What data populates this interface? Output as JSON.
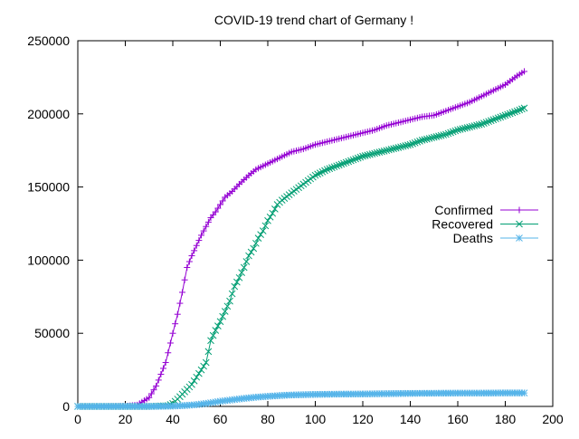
{
  "chart_data": {
    "type": "line",
    "title": "COVID-19 trend chart of Germany !",
    "xlabel": "",
    "ylabel": "",
    "xlim": [
      0,
      200
    ],
    "ylim": [
      0,
      250000
    ],
    "x_ticks": [
      0,
      20,
      40,
      60,
      80,
      100,
      120,
      140,
      160,
      180,
      200
    ],
    "y_ticks": [
      0,
      50000,
      100000,
      150000,
      200000,
      250000
    ],
    "grid": false,
    "legend_position": "right",
    "series": [
      {
        "name": "Confirmed",
        "color": "#9400d3",
        "marker": "plus",
        "points": [
          [
            0,
            0
          ],
          [
            10,
            0
          ],
          [
            20,
            150
          ],
          [
            25,
            1000
          ],
          [
            28,
            4000
          ],
          [
            30,
            6000
          ],
          [
            33,
            14000
          ],
          [
            35,
            22000
          ],
          [
            37,
            30000
          ],
          [
            40,
            50000
          ],
          [
            42,
            63000
          ],
          [
            44,
            78000
          ],
          [
            46,
            95000
          ],
          [
            48,
            103000
          ],
          [
            50,
            110000
          ],
          [
            52,
            117000
          ],
          [
            54,
            123000
          ],
          [
            56,
            129000
          ],
          [
            58,
            133000
          ],
          [
            60,
            138000
          ],
          [
            62,
            143000
          ],
          [
            65,
            147000
          ],
          [
            68,
            152000
          ],
          [
            70,
            155000
          ],
          [
            72,
            158000
          ],
          [
            75,
            162000
          ],
          [
            80,
            166000
          ],
          [
            85,
            170000
          ],
          [
            90,
            174000
          ],
          [
            95,
            176000
          ],
          [
            100,
            179000
          ],
          [
            105,
            181000
          ],
          [
            110,
            183000
          ],
          [
            115,
            185000
          ],
          [
            120,
            187000
          ],
          [
            125,
            189000
          ],
          [
            130,
            192000
          ],
          [
            135,
            194000
          ],
          [
            140,
            196000
          ],
          [
            145,
            198000
          ],
          [
            150,
            199000
          ],
          [
            155,
            202000
          ],
          [
            160,
            205000
          ],
          [
            165,
            208000
          ],
          [
            170,
            212000
          ],
          [
            175,
            216000
          ],
          [
            180,
            220000
          ],
          [
            185,
            226000
          ],
          [
            188,
            229000
          ]
        ]
      },
      {
        "name": "Recovered",
        "color": "#009e73",
        "marker": "cross",
        "points": [
          [
            0,
            0
          ],
          [
            20,
            0
          ],
          [
            30,
            0
          ],
          [
            38,
            500
          ],
          [
            40,
            2000
          ],
          [
            42,
            5000
          ],
          [
            45,
            10000
          ],
          [
            48,
            15000
          ],
          [
            50,
            20000
          ],
          [
            52,
            25000
          ],
          [
            54,
            30000
          ],
          [
            56,
            45000
          ],
          [
            58,
            52000
          ],
          [
            60,
            58000
          ],
          [
            62,
            65000
          ],
          [
            64,
            72000
          ],
          [
            66,
            82000
          ],
          [
            68,
            88000
          ],
          [
            70,
            95000
          ],
          [
            72,
            103000
          ],
          [
            74,
            108000
          ],
          [
            76,
            115000
          ],
          [
            78,
            120000
          ],
          [
            80,
            127000
          ],
          [
            82,
            132000
          ],
          [
            84,
            138000
          ],
          [
            86,
            141000
          ],
          [
            90,
            146000
          ],
          [
            95,
            152000
          ],
          [
            100,
            158000
          ],
          [
            105,
            162000
          ],
          [
            110,
            165000
          ],
          [
            115,
            168000
          ],
          [
            120,
            171000
          ],
          [
            125,
            173000
          ],
          [
            130,
            175000
          ],
          [
            135,
            177000
          ],
          [
            140,
            179000
          ],
          [
            145,
            182000
          ],
          [
            150,
            184000
          ],
          [
            155,
            186000
          ],
          [
            160,
            189000
          ],
          [
            165,
            191000
          ],
          [
            170,
            193000
          ],
          [
            175,
            196000
          ],
          [
            180,
            199000
          ],
          [
            185,
            202000
          ],
          [
            188,
            204000
          ]
        ]
      },
      {
        "name": "Deaths",
        "color": "#56b4e9",
        "marker": "star",
        "points": [
          [
            0,
            0
          ],
          [
            30,
            0
          ],
          [
            40,
            200
          ],
          [
            45,
            600
          ],
          [
            50,
            1200
          ],
          [
            55,
            2200
          ],
          [
            60,
            3500
          ],
          [
            65,
            4500
          ],
          [
            70,
            5500
          ],
          [
            75,
            6300
          ],
          [
            80,
            6900
          ],
          [
            85,
            7400
          ],
          [
            90,
            7800
          ],
          [
            95,
            8000
          ],
          [
            100,
            8200
          ],
          [
            110,
            8400
          ],
          [
            120,
            8500
          ],
          [
            130,
            8700
          ],
          [
            140,
            8900
          ],
          [
            150,
            9000
          ],
          [
            160,
            9100
          ],
          [
            170,
            9100
          ],
          [
            180,
            9200
          ],
          [
            188,
            9200
          ]
        ]
      }
    ]
  }
}
